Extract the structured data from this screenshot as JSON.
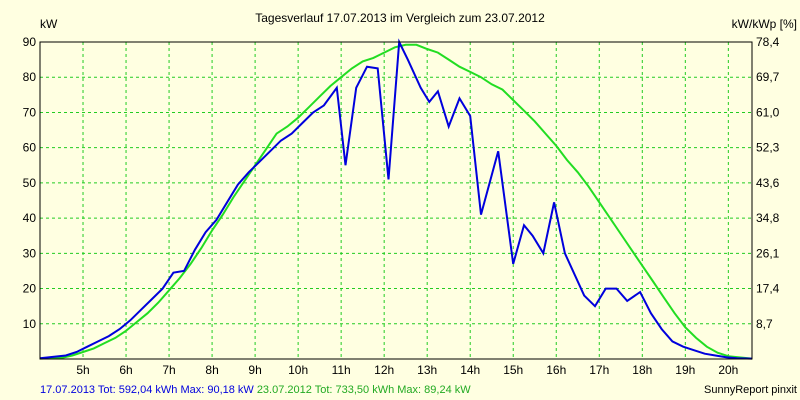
{
  "chart_data": {
    "type": "line",
    "title": "Tagesverlauf 17.07.2013 im Vergleich zum 23.07.2012",
    "ylabel_left": "kW",
    "ylabel_right": "kW/kWp [%]",
    "xlim": [
      4.0,
      20.55
    ],
    "ylim": [
      0,
      90
    ],
    "grid": true,
    "x_tick_values": [
      5,
      6,
      7,
      8,
      9,
      10,
      11,
      12,
      13,
      14,
      15,
      16,
      17,
      18,
      19,
      20
    ],
    "x_tick_labels": [
      "5h",
      "6h",
      "7h",
      "8h",
      "9h",
      "10h",
      "11h",
      "12h",
      "13h",
      "14h",
      "15h",
      "16h",
      "17h",
      "18h",
      "19h",
      "20h"
    ],
    "y_ticks": [
      10,
      20,
      30,
      40,
      50,
      60,
      70,
      80,
      90
    ],
    "y_tick_labels": [
      "10",
      "20",
      "30",
      "40",
      "50",
      "60",
      "70",
      "80",
      "90"
    ],
    "y_right_ticks": [
      10,
      20,
      30,
      40,
      50,
      60,
      70,
      80,
      90
    ],
    "y_right_tick_labels": [
      "8,7",
      "17,4",
      "26,1",
      "34,8",
      "43,6",
      "52,3",
      "61,0",
      "69,7",
      "78,4"
    ],
    "series": [
      {
        "name": "17.07.2013",
        "color": "#0000dd",
        "x": [
          4.0,
          4.6,
          4.85,
          5.1,
          5.35,
          5.6,
          5.85,
          6.1,
          6.35,
          6.6,
          6.85,
          7.1,
          7.35,
          7.6,
          7.85,
          8.1,
          8.35,
          8.6,
          8.85,
          9.1,
          9.35,
          9.6,
          9.85,
          10.1,
          10.35,
          10.6,
          10.9,
          11.1,
          11.35,
          11.6,
          11.85,
          12.1,
          12.35,
          12.55,
          12.85,
          13.05,
          13.25,
          13.5,
          13.75,
          14.0,
          14.25,
          14.65,
          15.0,
          15.25,
          15.45,
          15.7,
          15.95,
          16.2,
          16.65,
          16.9,
          17.15,
          17.4,
          17.65,
          17.95,
          18.2,
          18.45,
          18.7,
          18.95,
          19.2,
          19.45,
          19.7,
          19.95,
          20.2,
          20.55
        ],
        "y": [
          0.2,
          1,
          2,
          3.5,
          5,
          6.5,
          8.5,
          11,
          14,
          17,
          20,
          24.5,
          25,
          31,
          36,
          39.5,
          44.5,
          49.5,
          53,
          56,
          59,
          62,
          64,
          67,
          70,
          72,
          77,
          55,
          77,
          83,
          82.5,
          51,
          90,
          85,
          77,
          73,
          76,
          66,
          74,
          69,
          41,
          59,
          27,
          38,
          35,
          30,
          44.5,
          30,
          18,
          15,
          20,
          20,
          16.5,
          19,
          13,
          8.5,
          5,
          3.5,
          2.5,
          1.5,
          1,
          0.5,
          0.2,
          0.1
        ]
      },
      {
        "name": "23.07.2012",
        "color": "#22dd22",
        "x": [
          4.0,
          4.5,
          4.75,
          5.0,
          5.25,
          5.5,
          5.75,
          6.0,
          6.25,
          6.5,
          6.75,
          7.0,
          7.25,
          7.5,
          7.75,
          8.0,
          8.25,
          8.5,
          8.75,
          9.0,
          9.25,
          9.5,
          9.75,
          10.0,
          10.25,
          10.5,
          10.75,
          11.0,
          11.25,
          11.5,
          11.75,
          12.0,
          12.25,
          12.5,
          12.75,
          13.0,
          13.25,
          13.5,
          13.75,
          14.0,
          14.25,
          14.5,
          14.75,
          15.0,
          15.25,
          15.5,
          15.75,
          16.0,
          16.25,
          16.5,
          16.75,
          17.0,
          17.25,
          17.5,
          17.75,
          18.0,
          18.25,
          18.5,
          18.75,
          19.0,
          19.25,
          19.5,
          19.75,
          20.0,
          20.55
        ],
        "y": [
          0.1,
          0.3,
          1,
          2,
          3,
          4.5,
          6,
          8,
          10.5,
          13,
          16,
          19.5,
          23,
          27,
          31.5,
          36.5,
          41,
          46,
          50.5,
          55,
          59.5,
          64,
          66,
          68.5,
          71.5,
          74.5,
          77.5,
          80,
          82.5,
          84.5,
          85.5,
          87,
          88.5,
          89.2,
          89.2,
          88,
          87,
          85,
          83,
          81.5,
          80,
          78,
          76.5,
          73.5,
          70.5,
          67.5,
          64,
          60.5,
          56.5,
          53,
          49,
          44.5,
          40,
          35.5,
          31,
          26.5,
          22,
          17.5,
          13,
          9,
          6,
          3.5,
          1.8,
          0.8,
          0.1
        ]
      }
    ],
    "footer": {
      "series1": "17.07.2013 Tot: 592,04 kWh Max: 90,18 kW",
      "series2": "23.07.2012 Tot: 733,50 kWh Max: 89,24 kW",
      "brand": "SunnyReport pinxit"
    }
  },
  "colors": {
    "background": "#ffffe1",
    "grid": "#22cc22",
    "axis": "#000000"
  }
}
